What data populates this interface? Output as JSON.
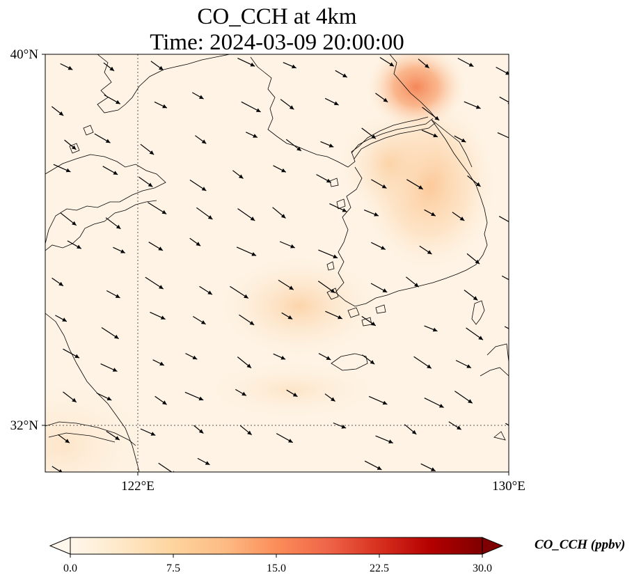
{
  "chart_data": {
    "type": "heatmap",
    "title_line1": "CO_CCH at 4km",
    "title_line2": "Time: 2024-03-09 20:00:00",
    "xaxis": {
      "ticks": [
        122,
        130
      ],
      "tick_labels": [
        "122°E",
        "130°E"
      ],
      "range": [
        120,
        130
      ]
    },
    "yaxis": {
      "ticks": [
        32,
        40
      ],
      "tick_labels": [
        "32°N",
        "40°N"
      ],
      "range": [
        31,
        40
      ]
    },
    "gridlines": {
      "longitudes": [
        122
      ],
      "latitudes": [
        32
      ],
      "style": "dotted"
    },
    "colorbar": {
      "label": "CO_CCH (ppbv)",
      "colormap": "OrRd",
      "range": [
        0,
        30
      ],
      "ticks": [
        0.0,
        7.5,
        15.0,
        22.5,
        30.0
      ],
      "tick_labels": [
        "0.0",
        "7.5",
        "15.0",
        "22.5",
        "30.0"
      ],
      "extend": "both"
    },
    "hotspots": [
      {
        "region": "northern plume near 128.3°E 39.6°N",
        "lon": 128.3,
        "lat": 39.6,
        "value": 12
      },
      {
        "region": "east Korea plume",
        "lon": 128.4,
        "lat": 38.0,
        "value": 6
      },
      {
        "region": "southwest Korea",
        "lon": 126.2,
        "lat": 34.5,
        "value": 4
      },
      {
        "region": "background",
        "value": 1
      }
    ],
    "wind_vectors_direction": "north-west to south-east"
  },
  "colors": {
    "background_field": "#fef3e4",
    "hotspot_high": "#f4875a",
    "hotspot_mid": "#fcbf86",
    "coastline": "#000000"
  }
}
